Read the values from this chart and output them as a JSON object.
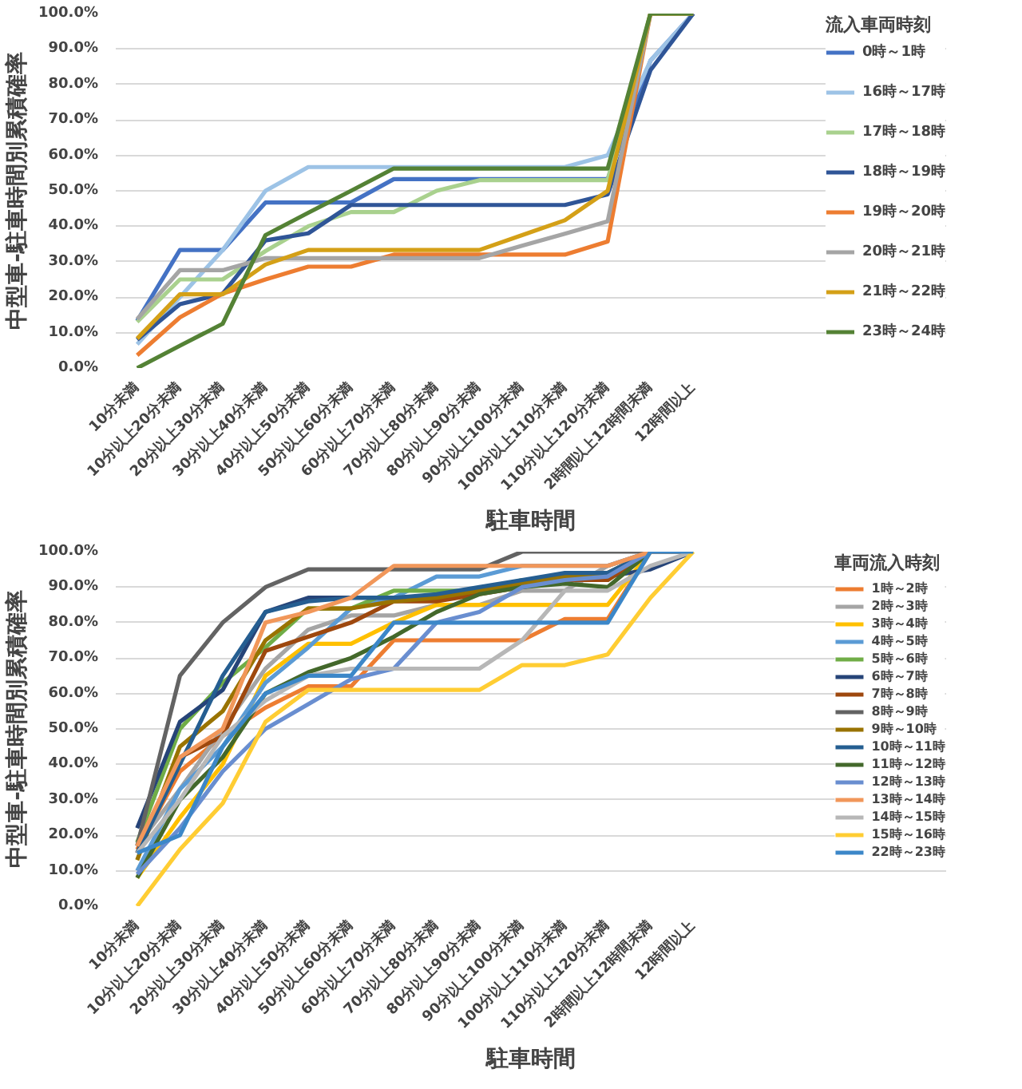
{
  "chart_data": [
    {
      "type": "line",
      "xlabel": "駐車時間",
      "ylabel": "中型車-駐車時間別累積確率",
      "legend_title": "流入車両時刻",
      "legend": "right",
      "grid": "y",
      "ylim": [
        0,
        100
      ],
      "yticks": [
        {
          "value": 0,
          "label": "0.0%"
        },
        {
          "value": 10,
          "label": "10.0%"
        },
        {
          "value": 20,
          "label": "20.0%"
        },
        {
          "value": 30,
          "label": "30.0%"
        },
        {
          "value": 40,
          "label": "40.0%"
        },
        {
          "value": 50,
          "label": "50.0%"
        },
        {
          "value": 60,
          "label": "60.0%"
        },
        {
          "value": 70,
          "label": "70.0%"
        },
        {
          "value": 80,
          "label": "80.0%"
        },
        {
          "value": 90,
          "label": "90.0%"
        },
        {
          "value": 100,
          "label": "100.0%"
        }
      ],
      "categories": [
        "10分未満",
        "10分以上20分未満",
        "20分以上30分未満",
        "30分以上40分未満",
        "40分以上50分未満",
        "50分以上60分未満",
        "60分以上70分未満",
        "70分以上80分未満",
        "80分以上90分未満",
        "90分以上100分未満",
        "100分以上110分未満",
        "110分以上120分未満",
        "2時間以上12時間未満",
        "12時間以上"
      ],
      "series": [
        {
          "name": "0時～1時",
          "color": "#4472c4",
          "values": [
            13.3,
            33.3,
            33.3,
            46.7,
            46.7,
            46.7,
            53.3,
            53.3,
            53.3,
            53.3,
            53.3,
            53.3,
            86.7,
            100
          ]
        },
        {
          "name": "16時～17時",
          "color": "#9dc3e6",
          "values": [
            6.7,
            20,
            33.3,
            50,
            56.7,
            56.7,
            56.7,
            56.7,
            56.7,
            56.7,
            56.7,
            60,
            86.7,
            100
          ]
        },
        {
          "name": "17時～18時",
          "color": "#a9d18e",
          "values": [
            13,
            25,
            25,
            33,
            40,
            44,
            44,
            50,
            53,
            53,
            53,
            53,
            100,
            100
          ]
        },
        {
          "name": "18時～19時",
          "color": "#2f5597",
          "values": [
            8,
            18,
            21,
            36,
            38,
            46,
            46,
            46,
            46,
            46,
            46,
            49,
            84,
            100
          ]
        },
        {
          "name": "19時～20時",
          "color": "#ed7d31",
          "values": [
            3.6,
            14.3,
            21,
            25,
            28.6,
            28.6,
            32,
            32,
            32,
            32,
            32,
            35.7,
            100,
            100
          ]
        },
        {
          "name": "20時～21時",
          "color": "#a5a5a5",
          "values": [
            13.8,
            27.6,
            27.6,
            31,
            31,
            31,
            31,
            31,
            31,
            34.5,
            37.9,
            41.4,
            100,
            100
          ]
        },
        {
          "name": "21時～22時",
          "color": "#d4a017",
          "values": [
            8.3,
            20.8,
            20.8,
            29.2,
            33.3,
            33.3,
            33.3,
            33.3,
            33.3,
            37.5,
            41.7,
            50,
            100,
            100
          ]
        },
        {
          "name": "23時～24時",
          "color": "#548235",
          "values": [
            0,
            6.3,
            12.5,
            37.5,
            43.8,
            50,
            56.3,
            56.3,
            56.3,
            56.3,
            56.3,
            56.3,
            100,
            100
          ]
        }
      ]
    },
    {
      "type": "line",
      "xlabel": "駐車時間",
      "ylabel": "中型車-駐車時間別累積確率",
      "legend_title": "車両流入時刻",
      "legend": "right",
      "grid": "y",
      "ylim": [
        0,
        100
      ],
      "yticks": [
        {
          "value": 0,
          "label": "0.0%"
        },
        {
          "value": 10,
          "label": "10.0%"
        },
        {
          "value": 20,
          "label": "20.0%"
        },
        {
          "value": 30,
          "label": "30.0%"
        },
        {
          "value": 40,
          "label": "40.0%"
        },
        {
          "value": 50,
          "label": "50.0%"
        },
        {
          "value": 60,
          "label": "60.0%"
        },
        {
          "value": 70,
          "label": "70.0%"
        },
        {
          "value": 80,
          "label": "80.0%"
        },
        {
          "value": 90,
          "label": "90.0%"
        },
        {
          "value": 100,
          "label": "100.0%"
        }
      ],
      "categories": [
        "10分未満",
        "10分以上20分未満",
        "20分以上30分未満",
        "30分以上40分未満",
        "40分以上50分未満",
        "50分以上60分未満",
        "60分以上70分未満",
        "70分以上80分未満",
        "80分以上90分未満",
        "90分以上100分未満",
        "100分以上110分未満",
        "110分以上120分未満",
        "2時間以上12時間未満",
        "12時間以上"
      ],
      "series": [
        {
          "name": "1時～2時",
          "color": "#ed7d31",
          "values": [
            16,
            38,
            48,
            56,
            62,
            62,
            75,
            75,
            75,
            75,
            81,
            81,
            100,
            100
          ]
        },
        {
          "name": "2時～3時",
          "color": "#a5a5a5",
          "values": [
            17,
            33,
            50,
            67,
            78,
            82,
            82,
            85,
            85,
            89,
            89,
            96,
            100,
            100
          ]
        },
        {
          "name": "3時～4時",
          "color": "#ffc000",
          "values": [
            8,
            25,
            40,
            65,
            74,
            74,
            80,
            85,
            85,
            85,
            85,
            85,
            100,
            100
          ]
        },
        {
          "name": "4時～5時",
          "color": "#5b9bd5",
          "values": [
            10,
            33,
            45,
            63,
            73,
            84,
            87,
            93,
            93,
            96,
            96,
            96,
            100,
            100
          ]
        },
        {
          "name": "5時～6時",
          "color": "#70ad47",
          "values": [
            18,
            50,
            63,
            73,
            84,
            84,
            89,
            89,
            89,
            92,
            92,
            92,
            100,
            100
          ]
        },
        {
          "name": "6時～7時",
          "color": "#264478",
          "values": [
            22,
            52,
            61,
            83,
            87,
            87,
            87,
            87,
            89,
            91,
            93,
            93,
            95,
            100
          ]
        },
        {
          "name": "7時～8時",
          "color": "#9e480e",
          "values": [
            15,
            42,
            48,
            72,
            76,
            80,
            86,
            86,
            88,
            90,
            92,
            92,
            100,
            100
          ]
        },
        {
          "name": "8時～9時",
          "color": "#636363",
          "values": [
            17,
            65,
            80,
            90,
            95,
            95,
            95,
            95,
            95,
            100,
            100,
            100,
            100,
            100
          ]
        },
        {
          "name": "9時～10時",
          "color": "#997300",
          "values": [
            13,
            45,
            55,
            75,
            84,
            84,
            86,
            87,
            89,
            91,
            93,
            94,
            100,
            100
          ]
        },
        {
          "name": "10時～11時",
          "color": "#255e91",
          "values": [
            15,
            40,
            65,
            83,
            86,
            87,
            87,
            88,
            90,
            92,
            94,
            94,
            100,
            100
          ]
        },
        {
          "name": "11時～12時",
          "color": "#43682b",
          "values": [
            8,
            30,
            42,
            60,
            66,
            70,
            76,
            83,
            88,
            90,
            91,
            90,
            100,
            100
          ]
        },
        {
          "name": "12時～13時",
          "color": "#698ed0",
          "values": [
            9,
            22,
            38,
            50,
            57,
            64,
            67,
            80,
            83,
            90,
            92,
            93,
            100,
            100
          ]
        },
        {
          "name": "13時～14時",
          "color": "#f1975a",
          "values": [
            17,
            42,
            50,
            80,
            83,
            87,
            96,
            96,
            96,
            96,
            96,
            96,
            100,
            100
          ]
        },
        {
          "name": "14時～15時",
          "color": "#b7b7b7",
          "values": [
            15,
            30,
            48,
            58,
            65,
            67,
            67,
            67,
            67,
            75,
            89,
            89,
            96,
            100
          ]
        },
        {
          "name": "15時～16時",
          "color": "#ffcd33",
          "values": [
            0,
            16,
            29,
            52,
            61,
            61,
            61,
            61,
            61,
            68,
            68,
            71,
            87,
            100
          ]
        },
        {
          "name": "22時～23時",
          "color": "#3c87c8",
          "values": [
            15,
            20,
            45,
            60,
            65,
            65,
            80,
            80,
            80,
            80,
            80,
            80,
            100,
            100
          ]
        }
      ]
    }
  ]
}
